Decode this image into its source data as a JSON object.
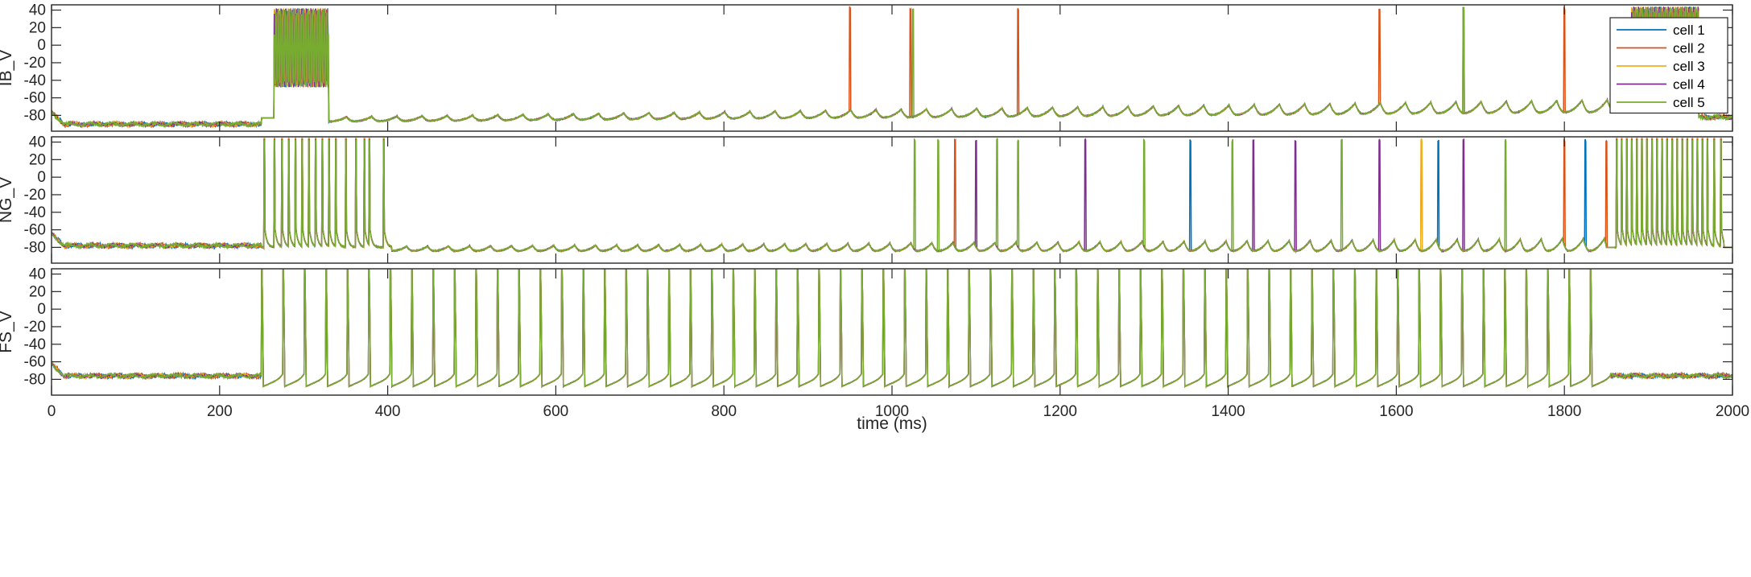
{
  "chart_data": [
    {
      "type": "line",
      "ylabel": "IB_V",
      "xlim": [
        0,
        2000
      ],
      "ylim": [
        -98,
        46
      ],
      "yticks": [
        40,
        20,
        0,
        -20,
        -40,
        -60,
        -80
      ],
      "xticks": [
        0,
        200,
        400,
        600,
        800,
        1000,
        1200,
        1400,
        1600,
        1800,
        2000
      ],
      "show_xticklabels": false,
      "baseline": -83,
      "drift_to": -72,
      "spike_peak": 44,
      "regions": [
        {
          "range": [
            0,
            250
          ],
          "kind": "rest",
          "level": -90
        },
        {
          "range": [
            265,
            330
          ],
          "kind": "burst",
          "low": -48,
          "high": 42
        },
        {
          "range": [
            330,
            1880
          ],
          "kind": "oscillate",
          "period": 30
        },
        {
          "range": [
            1880,
            1960
          ],
          "kind": "burst",
          "low": -50,
          "high": 44
        },
        {
          "range": [
            1960,
            2000
          ],
          "kind": "rest",
          "level": -82
        }
      ],
      "spikes": {
        "cell 2": [
          950,
          1022,
          1150,
          1580,
          1800
        ],
        "cell 4": [
          1680
        ],
        "cell 5": [
          1025,
          1680
        ]
      },
      "legend": {
        "position": "top-right",
        "entries": [
          "cell 1",
          "cell 2",
          "cell 3",
          "cell 4",
          "cell 5"
        ]
      }
    },
    {
      "type": "line",
      "ylabel": "NG_V",
      "xlim": [
        0,
        2000
      ],
      "ylim": [
        -98,
        46
      ],
      "yticks": [
        40,
        20,
        0,
        -20,
        -40,
        -60,
        -80
      ],
      "xticks": [
        0,
        200,
        400,
        600,
        800,
        1000,
        1200,
        1400,
        1600,
        1800,
        2000
      ],
      "show_xticklabels": false,
      "baseline": -80,
      "spike_peak": 44,
      "regions": [
        {
          "range": [
            0,
            250
          ],
          "kind": "rest",
          "level": -78
        },
        {
          "range": [
            250,
            405
          ],
          "kind": "spikes",
          "times": [
            253,
            265,
            274,
            282,
            290,
            298,
            306,
            314,
            322,
            330,
            338,
            350,
            362,
            372,
            378,
            395,
            405
          ]
        },
        {
          "range": [
            405,
            1850
          ],
          "kind": "oscillate",
          "period": 25
        },
        {
          "range": [
            1860,
            1990
          ],
          "kind": "spikes",
          "times": [
            1862,
            1868,
            1874,
            1880,
            1886,
            1892,
            1898,
            1904,
            1910,
            1916,
            1922,
            1928,
            1934,
            1940,
            1946,
            1952,
            1958,
            1964,
            1970,
            1978,
            1986,
            1995
          ]
        }
      ],
      "spikes": {
        "cell 1": [
          1355,
          1650,
          1825
        ],
        "cell 2": [
          1075,
          1630,
          1800,
          1850
        ],
        "cell 3": [
          1630
        ],
        "cell 4": [
          1100,
          1230,
          1430,
          1480,
          1580,
          1680
        ],
        "cell 5": [
          1027,
          1055,
          1125,
          1150,
          1300,
          1405,
          1535,
          1730
        ]
      }
    },
    {
      "type": "line",
      "ylabel": "FS_V",
      "xlabel": "time (ms)",
      "xlim": [
        0,
        2000
      ],
      "ylim": [
        -98,
        46
      ],
      "yticks": [
        40,
        20,
        0,
        -20,
        -40,
        -60,
        -80
      ],
      "xticks": [
        0,
        200,
        400,
        600,
        800,
        1000,
        1200,
        1400,
        1600,
        1800,
        2000
      ],
      "xticklabels": [
        "0",
        "200",
        "400",
        "600",
        "800",
        "1000",
        "1200",
        "1400",
        "1600",
        "1800",
        "2000"
      ],
      "show_xticklabels": true,
      "baseline": -76,
      "spike_peak": 46,
      "regions": [
        {
          "range": [
            0,
            250
          ],
          "kind": "rest",
          "level": -76
        },
        {
          "range": [
            250,
            1855
          ],
          "kind": "regular_spikes",
          "period": 25.5
        },
        {
          "range": [
            1855,
            2000
          ],
          "kind": "rest",
          "level": -76
        }
      ]
    }
  ],
  "series": [
    {
      "name": "cell 1",
      "color": "#0072BD"
    },
    {
      "name": "cell 2",
      "color": "#D95319"
    },
    {
      "name": "cell 3",
      "color": "#EDB120"
    },
    {
      "name": "cell 4",
      "color": "#7E2F8E"
    },
    {
      "name": "cell 5",
      "color": "#77AC30"
    }
  ]
}
